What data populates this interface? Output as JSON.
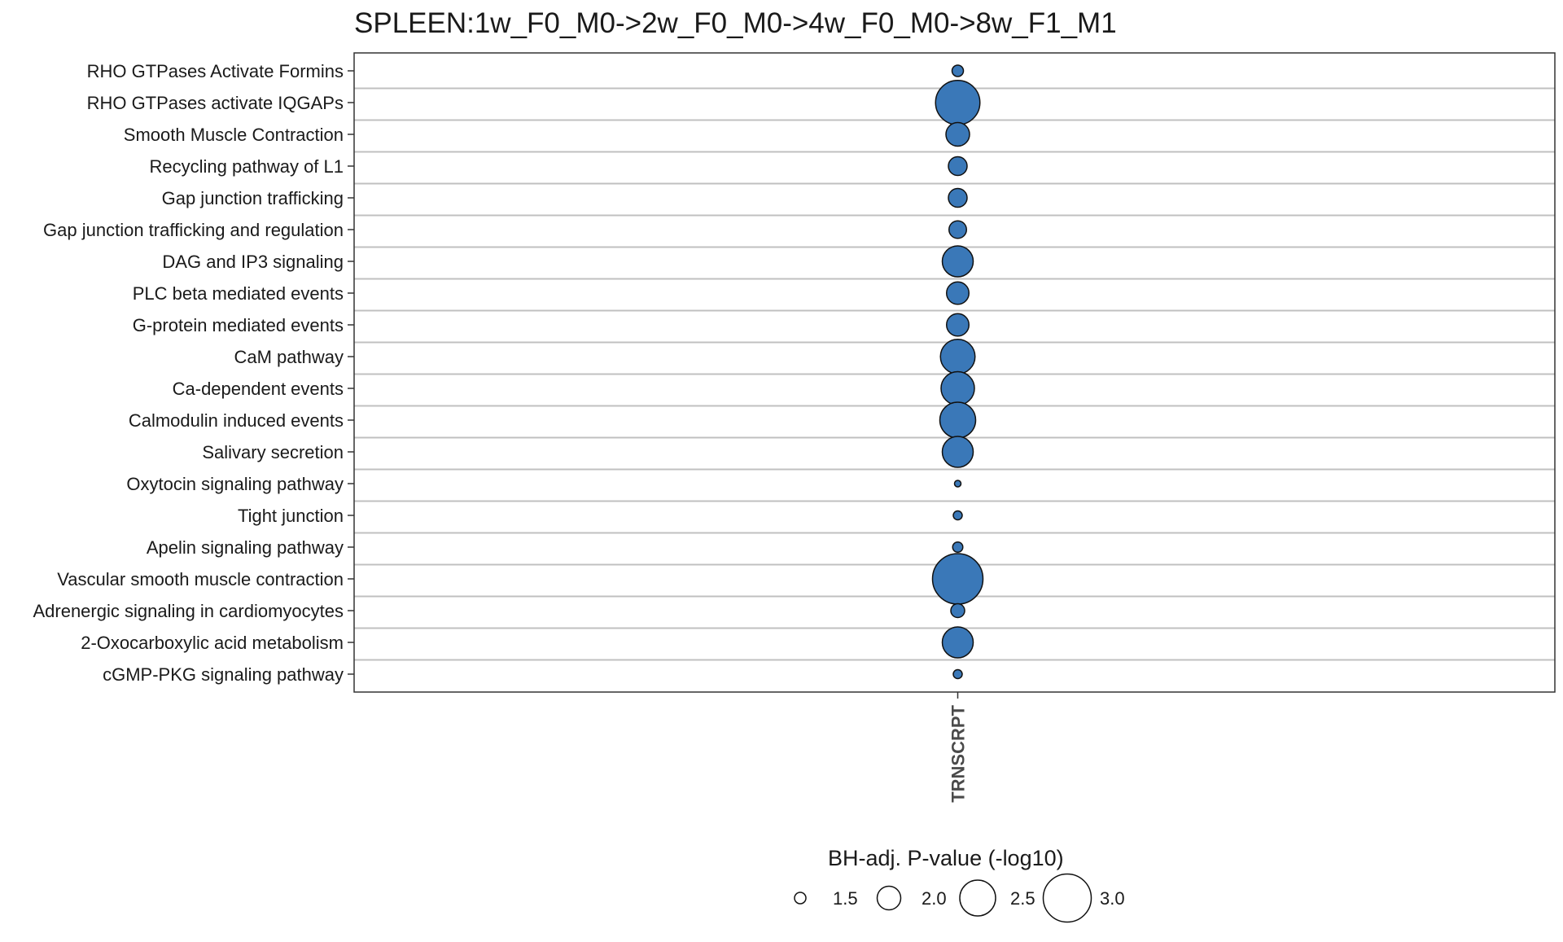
{
  "chart_data": {
    "type": "scatter",
    "title": "SPLEEN:1w_F0_M0->2w_F0_M0->4w_F0_M0->8w_F1_M1",
    "xlabel": "",
    "ylabel": "",
    "x_categories": [
      "TRNSCRPT"
    ],
    "y_categories": [
      "RHO GTPases Activate Formins",
      "RHO GTPases activate IQGAPs",
      "Smooth Muscle Contraction",
      "Recycling pathway of L1",
      "Gap junction trafficking",
      "Gap junction trafficking and regulation",
      "DAG and IP3 signaling",
      "PLC beta mediated events",
      "G-protein mediated events",
      "CaM pathway",
      "Ca-dependent events",
      "Calmodulin induced events",
      "Salivary secretion",
      "Oxytocin signaling pathway",
      "Tight junction",
      "Apelin signaling pathway",
      "Vascular smooth muscle contraction",
      "Adrenergic signaling in cardiomyocytes",
      "2-Oxocarboxylic acid metabolism",
      "cGMP-PKG signaling pathway"
    ],
    "points": [
      {
        "x": "TRNSCRPT",
        "y": "RHO GTPases Activate Formins",
        "size_value": 1.5
      },
      {
        "x": "TRNSCRPT",
        "y": "RHO GTPases activate IQGAPs",
        "size_value": 2.85
      },
      {
        "x": "TRNSCRPT",
        "y": "Smooth Muscle Contraction",
        "size_value": 2.0
      },
      {
        "x": "TRNSCRPT",
        "y": "Recycling pathway of L1",
        "size_value": 1.8
      },
      {
        "x": "TRNSCRPT",
        "y": "Gap junction trafficking",
        "size_value": 1.8
      },
      {
        "x": "TRNSCRPT",
        "y": "Gap junction trafficking and regulation",
        "size_value": 1.75
      },
      {
        "x": "TRNSCRPT",
        "y": "DAG and IP3 signaling",
        "size_value": 2.3
      },
      {
        "x": "TRNSCRPT",
        "y": "PLC beta mediated events",
        "size_value": 1.95
      },
      {
        "x": "TRNSCRPT",
        "y": "G-protein mediated events",
        "size_value": 1.95
      },
      {
        "x": "TRNSCRPT",
        "y": "CaM pathway",
        "size_value": 2.45
      },
      {
        "x": "TRNSCRPT",
        "y": "Ca-dependent events",
        "size_value": 2.4
      },
      {
        "x": "TRNSCRPT",
        "y": "Calmodulin induced events",
        "size_value": 2.5
      },
      {
        "x": "TRNSCRPT",
        "y": "Salivary secretion",
        "size_value": 2.3
      },
      {
        "x": "TRNSCRPT",
        "y": "Oxytocin signaling pathway",
        "size_value": 1.3
      },
      {
        "x": "TRNSCRPT",
        "y": "Tight junction",
        "size_value": 1.4
      },
      {
        "x": "TRNSCRPT",
        "y": "Apelin signaling pathway",
        "size_value": 1.45
      },
      {
        "x": "TRNSCRPT",
        "y": "Vascular smooth muscle contraction",
        "size_value": 3.1
      },
      {
        "x": "TRNSCRPT",
        "y": "Adrenergic signaling in cardiomyocytes",
        "size_value": 1.6
      },
      {
        "x": "TRNSCRPT",
        "y": "2-Oxocarboxylic acid metabolism",
        "size_value": 2.3
      },
      {
        "x": "TRNSCRPT",
        "y": "cGMP-PKG signaling pathway",
        "size_value": 1.4
      }
    ],
    "legend": {
      "title": "BH-adj. P-value (-log10)",
      "position": "bottom",
      "breaks": [
        1.5,
        2.0,
        2.5,
        3.0
      ],
      "labels": [
        "1.5",
        "2.0",
        "2.5",
        "3.0"
      ]
    },
    "grid": true,
    "colors": {
      "point_fill": "#3a78b8",
      "point_stroke": "#111111",
      "gridline": "#c0c0c0",
      "panel_border": "#333333"
    }
  }
}
